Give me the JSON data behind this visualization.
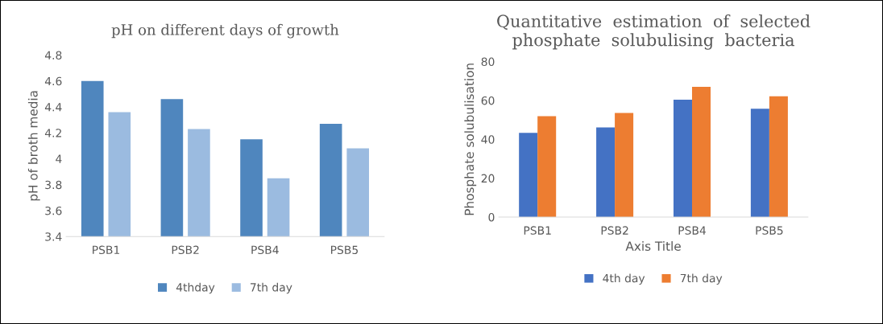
{
  "chart_data": [
    {
      "type": "bar",
      "title": "pH on different days of growth",
      "ylabel": "pH of broth media",
      "categories": [
        "PSB1",
        "PSB2",
        "PSB4",
        "PSB5"
      ],
      "series": [
        {
          "name": "4thday",
          "color": "#4f86be",
          "values": [
            4.6,
            4.46,
            4.15,
            4.27
          ]
        },
        {
          "name": "7th day",
          "color": "#9bbbe0",
          "values": [
            4.36,
            4.23,
            3.85,
            4.08
          ]
        }
      ],
      "ylim": [
        3.4,
        4.8
      ],
      "yticks": [
        {
          "value": 3.4,
          "label": "3.4"
        },
        {
          "value": 3.6,
          "label": "3.6"
        },
        {
          "value": 3.8,
          "label": "3.8"
        },
        {
          "value": 4.0,
          "label": "4"
        },
        {
          "value": 4.2,
          "label": "4.2"
        },
        {
          "value": 4.4,
          "label": "4.4"
        },
        {
          "value": 4.6,
          "label": "4.6"
        },
        {
          "value": 4.8,
          "label": "4.8"
        }
      ],
      "grid": false,
      "legend": "bottom"
    },
    {
      "type": "bar",
      "title": "Quantitative  estimation  of  selected\nphosphate  solubulising  bacteria",
      "ylabel": "Phosphate solubulisation",
      "xlabel": "Axis Title",
      "categories": [
        "PSB1",
        "PSB2",
        "PSB4",
        "PSB5"
      ],
      "series": [
        {
          "name": "4th day",
          "color": "#4472c4",
          "values": [
            43.3,
            46.1,
            60.4,
            55.7
          ]
        },
        {
          "name": "7th day",
          "color": "#ed7d31",
          "values": [
            51.9,
            53.6,
            67.0,
            62.1
          ]
        }
      ],
      "ylim": [
        0,
        80
      ],
      "yticks": [
        0,
        20,
        40,
        60,
        80
      ],
      "grid": false,
      "legend": "bottom"
    }
  ]
}
